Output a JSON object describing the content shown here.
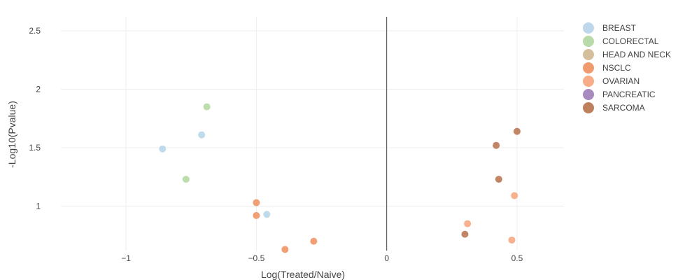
{
  "chart_data": {
    "type": "scatter",
    "xlabel": "Log(Treated/Naive)",
    "ylabel": "-Log10(Pvalue)",
    "xlim": [
      -1.25,
      0.68
    ],
    "ylim": [
      0.62,
      2.62
    ],
    "x_ticks": [
      {
        "value": -1,
        "label": "−1"
      },
      {
        "value": -0.5,
        "label": "−0.5"
      },
      {
        "value": 0,
        "label": "0"
      },
      {
        "value": 0.5,
        "label": "0.5"
      }
    ],
    "y_ticks": [
      {
        "value": 1,
        "label": "1"
      },
      {
        "value": 1.5,
        "label": "1.5"
      },
      {
        "value": 2,
        "label": "2"
      },
      {
        "value": 2.5,
        "label": "2.5"
      }
    ],
    "grid": true,
    "zero_line": true,
    "legend_position": "top-right",
    "series": [
      {
        "name": "BREAST",
        "color": "#bcd8ea",
        "points": [
          [
            -0.86,
            1.49
          ],
          [
            -0.71,
            1.61
          ],
          [
            -0.46,
            0.93
          ]
        ]
      },
      {
        "name": "COLORECTAL",
        "color": "#b9dba9",
        "points": [
          [
            -0.69,
            1.85
          ],
          [
            -0.77,
            1.23
          ]
        ]
      },
      {
        "name": "HEAD AND NECK",
        "color": "#d5be9c",
        "points": []
      },
      {
        "name": "NSCLC",
        "color": "#f09a6e",
        "points": [
          [
            -0.5,
            1.03
          ],
          [
            -0.5,
            0.92
          ],
          [
            -0.28,
            0.7
          ],
          [
            -0.39,
            0.63
          ]
        ]
      },
      {
        "name": "OVARIAN",
        "color": "#f7ad88",
        "points": [
          [
            0.31,
            0.85
          ],
          [
            0.49,
            1.09
          ],
          [
            0.48,
            0.71
          ]
        ]
      },
      {
        "name": "PANCREATIC",
        "color": "#a88abf",
        "points": []
      },
      {
        "name": "SARCOMA",
        "color": "#bf805e",
        "points": [
          [
            0.5,
            1.64
          ],
          [
            0.42,
            1.52
          ],
          [
            0.43,
            1.23
          ],
          [
            0.3,
            0.76
          ]
        ]
      }
    ]
  }
}
